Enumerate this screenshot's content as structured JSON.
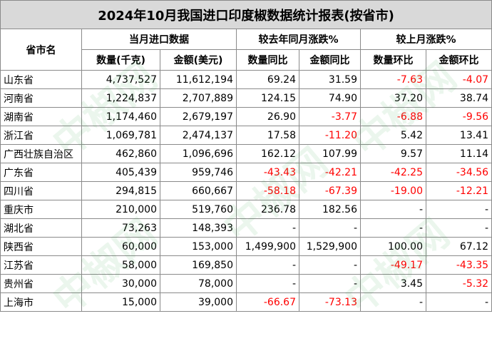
{
  "title": "2024年10月我国进口印度椒数据统计报表(按省市)",
  "headers": {
    "province": "省市名",
    "group_current": "当月进口数据",
    "group_yoy": "较去年同月涨跌%",
    "group_mom": "较上月涨跌%",
    "qty": "数量(千克)",
    "amount": "金额(美元)",
    "qty_yoy": "数量同比",
    "amount_yoy": "金额同比",
    "qty_mom": "数量环比",
    "amount_mom": "金额环比"
  },
  "rows": [
    [
      "山东省",
      "4,737,527",
      "11,612,194",
      "69.24",
      "31.59",
      "-7.63",
      "-4.07"
    ],
    [
      "河南省",
      "1,224,837",
      "2,707,889",
      "124.15",
      "74.90",
      "37.20",
      "38.74"
    ],
    [
      "湖南省",
      "1,174,460",
      "2,679,197",
      "26.90",
      "-3.77",
      "-6.88",
      "-9.56"
    ],
    [
      "浙江省",
      "1,069,781",
      "2,474,137",
      "17.58",
      "-11.20",
      "5.42",
      "13.41"
    ],
    [
      "广西壮族自治区",
      "462,860",
      "1,096,696",
      "162.12",
      "107.99",
      "9.57",
      "11.14"
    ],
    [
      "广东省",
      "405,439",
      "959,746",
      "-43.43",
      "-42.21",
      "-42.25",
      "-34.56"
    ],
    [
      "四川省",
      "294,815",
      "660,667",
      "-58.18",
      "-67.39",
      "-19.00",
      "-12.21"
    ],
    [
      "重庆市",
      "210,000",
      "519,760",
      "236.78",
      "182.56",
      "-",
      "-"
    ],
    [
      "湖北省",
      "73,263",
      "148,393",
      "-",
      "-",
      "-",
      "-"
    ],
    [
      "陕西省",
      "60,000",
      "153,000",
      "1,499,900",
      "1,529,900",
      "100.00",
      "67.12"
    ],
    [
      "江苏省",
      "58,000",
      "169,850",
      "-",
      "-",
      "-49.17",
      "-43.35"
    ],
    [
      "贵州省",
      "30,000",
      "78,000",
      "-",
      "-",
      "3.45",
      "-5.32"
    ],
    [
      "上海市",
      "15,000",
      "39,000",
      "-66.67",
      "-73.13",
      "-",
      "-"
    ]
  ],
  "colors": {
    "negative": "#ff0000",
    "title_bg": "#d9d9d9",
    "border": "#8a8a8a"
  }
}
